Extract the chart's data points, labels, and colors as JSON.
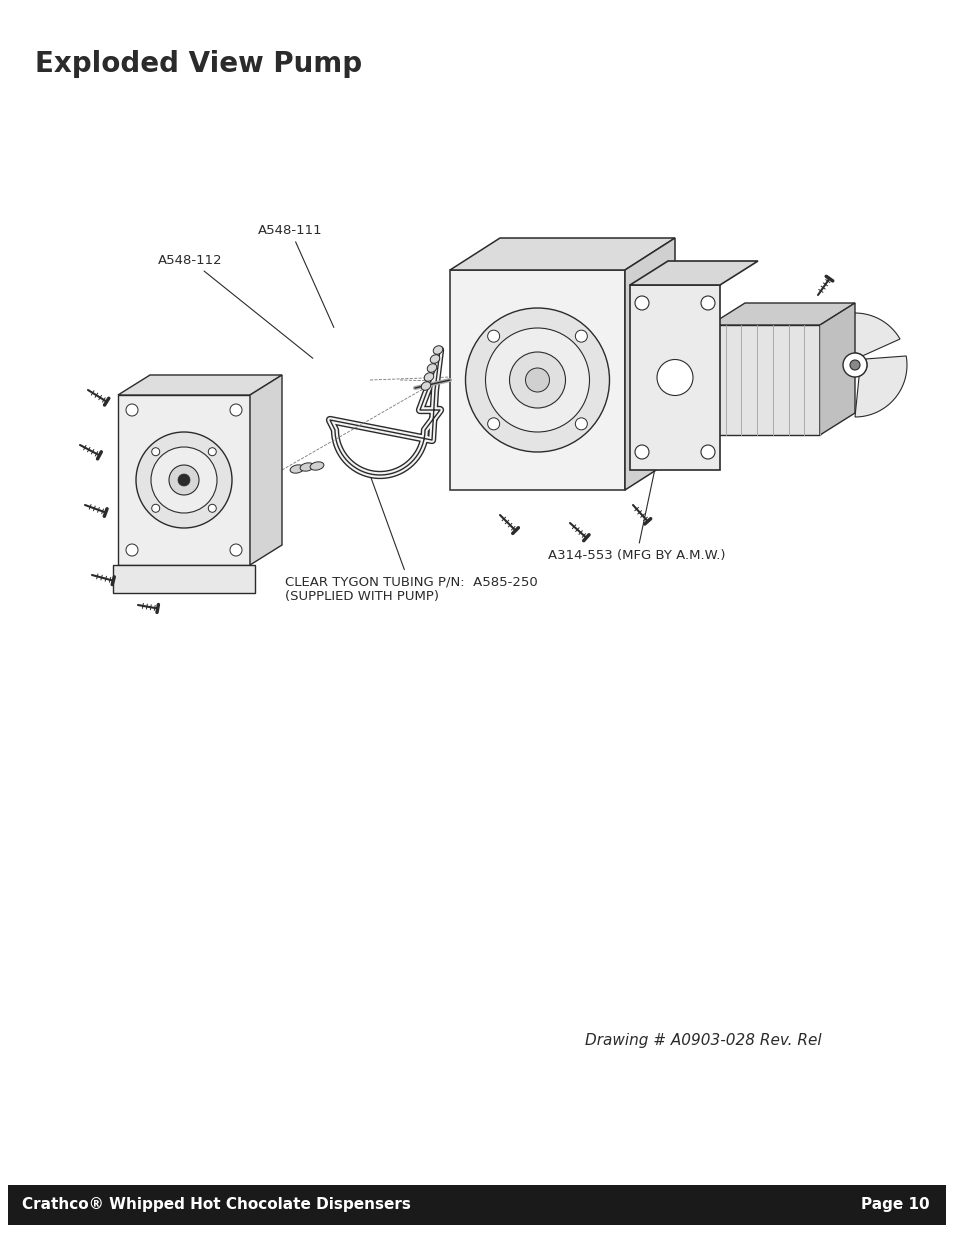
{
  "title": "Exploded View Pump",
  "title_fontsize": 20,
  "title_color": "#2b2b2b",
  "footer_text_left": "Crathco® Whipped Hot Chocolate Dispensers",
  "footer_text_right": "Page 10",
  "footer_bg": "#1a1a1a",
  "footer_text_color": "#ffffff",
  "footer_fontsize": 11,
  "drawing_number": "Drawing # A0903-028 Rev. Rel",
  "label_A548_111": "A548-111",
  "label_A548_112": "A548-112",
  "label_A314_553": "A314-553 (MFG BY A.M.W.)",
  "label_tubing": "CLEAR TYGON TUBING P/N:  A585-250\n(SUPPLIED WITH PUMP)",
  "bg_color": "#ffffff",
  "line_color": "#2b2b2b"
}
